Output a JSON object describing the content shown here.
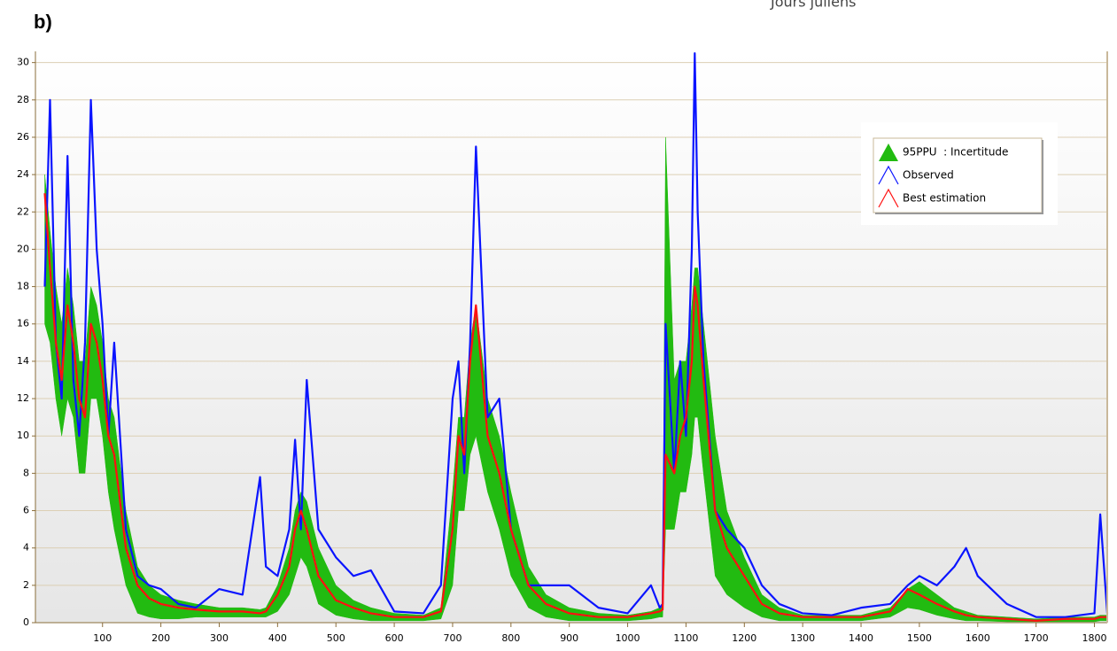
{
  "chart_data": {
    "type": "line",
    "panel_label": "b)",
    "top_label": "Jours juliens",
    "x": [
      1,
      10,
      20,
      30,
      40,
      50,
      60,
      70,
      80,
      90,
      100,
      110,
      120,
      140,
      160,
      180,
      200,
      230,
      260,
      300,
      340,
      370,
      380,
      400,
      420,
      430,
      440,
      450,
      470,
      500,
      530,
      560,
      600,
      650,
      680,
      700,
      710,
      720,
      730,
      740,
      760,
      780,
      800,
      830,
      860,
      900,
      950,
      1000,
      1040,
      1055,
      1060,
      1065,
      1080,
      1090,
      1100,
      1110,
      1115,
      1120,
      1130,
      1150,
      1170,
      1200,
      1230,
      1260,
      1300,
      1350,
      1400,
      1450,
      1480,
      1500,
      1530,
      1560,
      1580,
      1600,
      1650,
      1700,
      1750,
      1800,
      1810,
      1822
    ],
    "series": [
      {
        "name": "95PPU  : Incertitude",
        "color": "#22bb11",
        "kind": "band",
        "upper": [
          24,
          21,
          18,
          16,
          19,
          17,
          14,
          14,
          18,
          17,
          15,
          12,
          11,
          6,
          3,
          2,
          1.5,
          1.2,
          1,
          0.8,
          0.8,
          0.7,
          0.8,
          2,
          4,
          6,
          7,
          6.5,
          4,
          2,
          1.2,
          0.8,
          0.5,
          0.4,
          0.8,
          7,
          11,
          11,
          15,
          17,
          12,
          10,
          7,
          3,
          1.5,
          0.8,
          0.5,
          0.4,
          0.6,
          0.8,
          0.9,
          26,
          13,
          14,
          14,
          17,
          19,
          19,
          16,
          10,
          6,
          3.5,
          1.5,
          0.8,
          0.4,
          0.4,
          0.4,
          0.8,
          1.8,
          2.2,
          1.5,
          0.8,
          0.6,
          0.4,
          0.3,
          0.2,
          0.3,
          0.3,
          0.4,
          0.4
        ],
        "lower": [
          16,
          15,
          12,
          10,
          12,
          11,
          8,
          8,
          12,
          12,
          10,
          7,
          5,
          2,
          0.5,
          0.3,
          0.2,
          0.2,
          0.3,
          0.3,
          0.3,
          0.3,
          0.3,
          0.6,
          1.5,
          2.5,
          3.5,
          3,
          1,
          0.4,
          0.2,
          0.1,
          0.1,
          0.1,
          0.2,
          2,
          6,
          6,
          9,
          10,
          7,
          5,
          2.5,
          0.8,
          0.3,
          0.1,
          0.1,
          0.1,
          0.2,
          0.3,
          0.3,
          5,
          5,
          7,
          7,
          9,
          11,
          11,
          8,
          2.5,
          1.5,
          0.8,
          0.3,
          0.1,
          0.1,
          0.1,
          0.1,
          0.3,
          0.8,
          0.7,
          0.4,
          0.2,
          0.1,
          0.1,
          0.05,
          0.05,
          0.05,
          0.05,
          0.1,
          0.1
        ]
      },
      {
        "name": "Observed",
        "color": "#0a14ff",
        "kind": "line",
        "values": [
          18,
          28,
          15,
          12,
          25,
          13,
          10,
          15,
          28,
          20,
          16,
          10,
          15,
          5,
          2.5,
          2,
          1.8,
          1,
          0.8,
          1.8,
          1.5,
          7.8,
          3,
          2.5,
          5,
          9.8,
          5,
          13,
          5,
          3.5,
          2.5,
          2.8,
          0.6,
          0.5,
          2,
          12,
          14,
          8,
          15,
          25.5,
          11,
          12,
          5,
          2,
          2,
          2,
          0.8,
          0.5,
          2,
          0.8,
          1,
          16,
          8,
          14,
          10,
          20,
          30.5,
          22,
          14,
          6,
          5,
          4,
          2,
          1,
          0.5,
          0.4,
          0.8,
          1,
          2,
          2.5,
          2,
          3,
          4,
          2.5,
          1,
          0.3,
          0.3,
          0.5,
          5.8,
          0.5
        ]
      },
      {
        "name": "Best estimation",
        "color": "#ff1010",
        "kind": "line",
        "values": [
          23,
          19,
          15,
          13,
          17,
          15,
          12,
          11,
          16,
          15,
          13,
          10,
          9,
          4,
          2,
          1.3,
          1,
          0.8,
          0.7,
          0.6,
          0.6,
          0.5,
          0.6,
          1.5,
          3,
          5,
          6,
          5,
          2.5,
          1.2,
          0.8,
          0.5,
          0.3,
          0.3,
          0.6,
          5,
          10,
          9,
          14,
          17,
          10,
          8,
          5,
          2,
          1,
          0.5,
          0.3,
          0.3,
          0.5,
          0.6,
          0.7,
          9,
          8,
          10,
          11,
          14,
          18,
          17,
          13,
          6,
          4,
          2.5,
          1,
          0.5,
          0.3,
          0.3,
          0.3,
          0.6,
          1.8,
          1.5,
          1,
          0.6,
          0.4,
          0.3,
          0.2,
          0.1,
          0.2,
          0.2,
          0.3,
          0.3
        ]
      }
    ],
    "xlim": [
      -15,
      1822
    ],
    "ylim": [
      0,
      30.6
    ],
    "xticks": [
      100,
      200,
      300,
      400,
      500,
      600,
      700,
      800,
      900,
      1000,
      1100,
      1200,
      1300,
      1400,
      1500,
      1600,
      1700,
      1800
    ],
    "yticks": [
      0,
      2,
      4,
      6,
      8,
      10,
      12,
      14,
      16,
      18,
      20,
      22,
      24,
      26,
      28,
      30
    ],
    "grid": true,
    "legend": "upper right"
  }
}
